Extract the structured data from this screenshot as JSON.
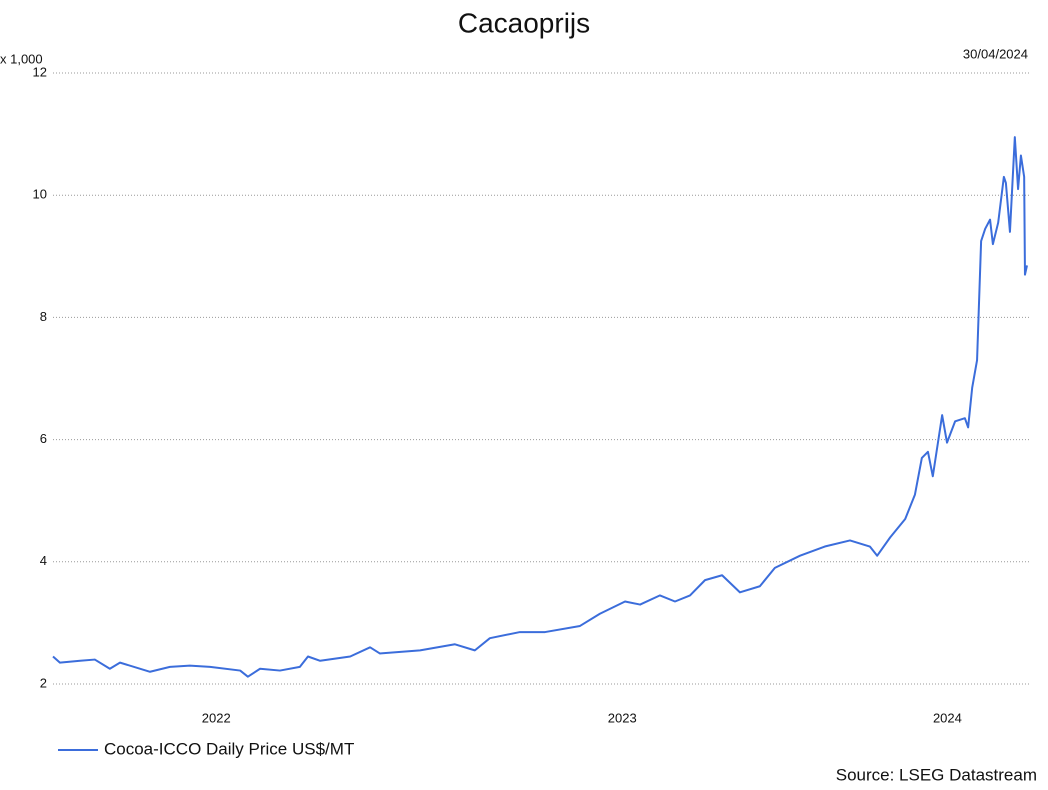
{
  "chart_data": {
    "type": "line",
    "title": "Cacaoprijs",
    "unit_label": "x 1,000",
    "date_label": "30/04/2024",
    "source": "Source: LSEG Datastream",
    "x": [
      2021.93,
      2021.947,
      2021.997,
      2022.033,
      2022.07,
      2022.095,
      2022.169,
      2022.218,
      2022.267,
      2022.317,
      2022.391,
      2022.41,
      2022.44,
      2022.489,
      2022.538,
      2022.558,
      2022.588,
      2022.662,
      2022.711,
      2022.735,
      2022.834,
      2022.92,
      2022.969,
      2023.006,
      2023.08,
      2023.142,
      2023.228,
      2023.277,
      2023.339,
      2023.376,
      2023.425,
      2023.462,
      2023.499,
      2023.536,
      2023.578,
      2023.622,
      2023.671,
      2023.708,
      2023.77,
      2023.831,
      2023.893,
      2023.942,
      2023.96,
      2023.992,
      2024.029,
      2024.053,
      2024.07,
      2024.085,
      2024.097,
      2024.12,
      2024.132,
      2024.152,
      2024.176,
      2024.184,
      2024.194,
      2024.206,
      2024.216,
      2024.226,
      2024.238,
      2024.245,
      2024.258,
      2024.272,
      2024.277,
      2024.287,
      2024.299,
      2024.307,
      2024.314,
      2024.322,
      2024.324,
      2024.329
    ],
    "series": [
      {
        "name": "Cocoa-ICCO Daily Price US$/MT",
        "color": "#3b6ddb",
        "values": [
          2.45,
          2.35,
          2.38,
          2.4,
          2.25,
          2.35,
          2.2,
          2.28,
          2.3,
          2.28,
          2.22,
          2.12,
          2.25,
          2.22,
          2.28,
          2.45,
          2.38,
          2.45,
          2.6,
          2.5,
          2.55,
          2.65,
          2.55,
          2.75,
          2.85,
          2.85,
          2.95,
          3.15,
          3.35,
          3.3,
          3.45,
          3.35,
          3.45,
          3.7,
          3.78,
          3.5,
          3.6,
          3.9,
          4.1,
          4.25,
          4.35,
          4.25,
          4.1,
          4.4,
          4.7,
          5.1,
          5.7,
          5.8,
          5.4,
          6.4,
          5.95,
          6.3,
          6.35,
          6.2,
          6.85,
          7.3,
          9.25,
          9.45,
          9.6,
          9.2,
          9.55,
          10.3,
          10.2,
          9.4,
          10.95,
          10.1,
          10.65,
          10.3,
          8.7,
          8.85
        ]
      }
    ],
    "xlim": [
      2021.93,
      2024.329
    ],
    "xticks": [
      {
        "value": 2022.332,
        "label": "2022"
      },
      {
        "value": 2023.332,
        "label": "2023"
      },
      {
        "value": 2024.133,
        "label": "2024"
      }
    ],
    "ylim": [
      2,
      12
    ],
    "yticks": [
      2,
      4,
      6,
      8,
      10,
      12
    ],
    "grid": true
  }
}
